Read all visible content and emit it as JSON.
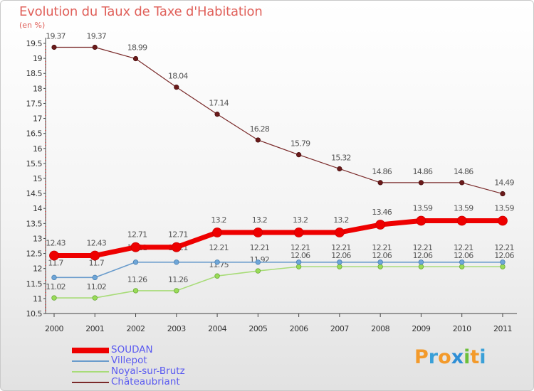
{
  "header": {
    "title": "Evolution du Taux de Taxe d'Habitation",
    "unit_label": "(en %)"
  },
  "brand": {
    "letters": [
      "P",
      "r",
      "o",
      "x",
      "i",
      "t",
      "i"
    ],
    "colors": [
      "#f39a2b",
      "#3aa0d8",
      "#f39a2b",
      "#2e8fd6",
      "#6cbf3a",
      "#f39a2b",
      "#3aa0d8"
    ]
  },
  "chart_data": {
    "type": "line",
    "title": "Evolution du Taux de Taxe d'Habitation",
    "ylabel": "(en %)",
    "xlabel": "",
    "x": [
      "2000",
      "2001",
      "2002",
      "2003",
      "2004",
      "2005",
      "2006",
      "2007",
      "2008",
      "2009",
      "2010",
      "2011"
    ],
    "ylim": [
      10.5,
      19.5
    ],
    "yticks": [
      10.5,
      11,
      11.5,
      12,
      12.5,
      13,
      13.5,
      14,
      14.5,
      15,
      15.5,
      16,
      16.5,
      17,
      17.5,
      18,
      18.5,
      19,
      19.5
    ],
    "ytick_labels": [
      "10.5",
      "11",
      "11.5",
      "12",
      "12.5",
      "13",
      "13.5",
      "14",
      "14.5",
      "15",
      "15.5",
      "16",
      "16.5",
      "17",
      "17.5",
      "18",
      "18.5",
      "19",
      "19.5"
    ],
    "grid": false,
    "legend_position": "bottom-left",
    "series": [
      {
        "name": "Châteaubriant",
        "color": "#7a2a2a",
        "values": [
          19.37,
          19.37,
          18.99,
          18.04,
          17.14,
          16.28,
          15.79,
          15.32,
          14.86,
          14.86,
          14.86,
          14.49
        ],
        "labels": [
          "19.37",
          "19.37",
          "18.99",
          "18.04",
          "17.14",
          "16.28",
          "15.79",
          "15.32",
          "14.86",
          "14.86",
          "14.86",
          "14.49"
        ]
      },
      {
        "name": "Noyal-sur-Brutz",
        "color": "#a8dc78",
        "values": [
          11.02,
          11.02,
          11.26,
          11.26,
          11.75,
          11.92,
          12.06,
          12.06,
          12.06,
          12.06,
          12.06,
          12.06
        ],
        "labels": [
          "11.02",
          "11.02",
          "11.26",
          "11.26",
          "11.75",
          "11.92",
          "12.06",
          "12.06",
          "12.06",
          "12.06",
          "12.06",
          "12.06"
        ]
      },
      {
        "name": "Villepot",
        "color": "#6a9ccc",
        "values": [
          11.7,
          11.7,
          12.21,
          12.21,
          12.21,
          12.21,
          12.21,
          12.21,
          12.21,
          12.21,
          12.21,
          12.21
        ],
        "labels": [
          "11.7",
          "11.7",
          "12.21",
          "12.21",
          "12.21",
          "12.21",
          "12.21",
          "12.21",
          "12.21",
          "12.21",
          "12.21",
          "12.21"
        ]
      },
      {
        "name": "SOUDAN",
        "color": "#ee0000",
        "values": [
          12.43,
          12.43,
          12.71,
          12.71,
          13.2,
          13.2,
          13.2,
          13.2,
          13.46,
          13.59,
          13.59,
          13.59
        ],
        "labels": [
          "12.43",
          "12.43",
          "12.71",
          "12.71",
          "13.2",
          "13.2",
          "13.2",
          "13.2",
          "13.46",
          "13.59",
          "13.59",
          "13.59"
        ]
      }
    ],
    "legend": [
      {
        "name": "SOUDAN",
        "color": "#ee0000"
      },
      {
        "name": "Villepot",
        "color": "#6a9ccc"
      },
      {
        "name": "Noyal-sur-Brutz",
        "color": "#a8dc78"
      },
      {
        "name": "Châteaubriant",
        "color": "#7a2a2a"
      }
    ]
  }
}
